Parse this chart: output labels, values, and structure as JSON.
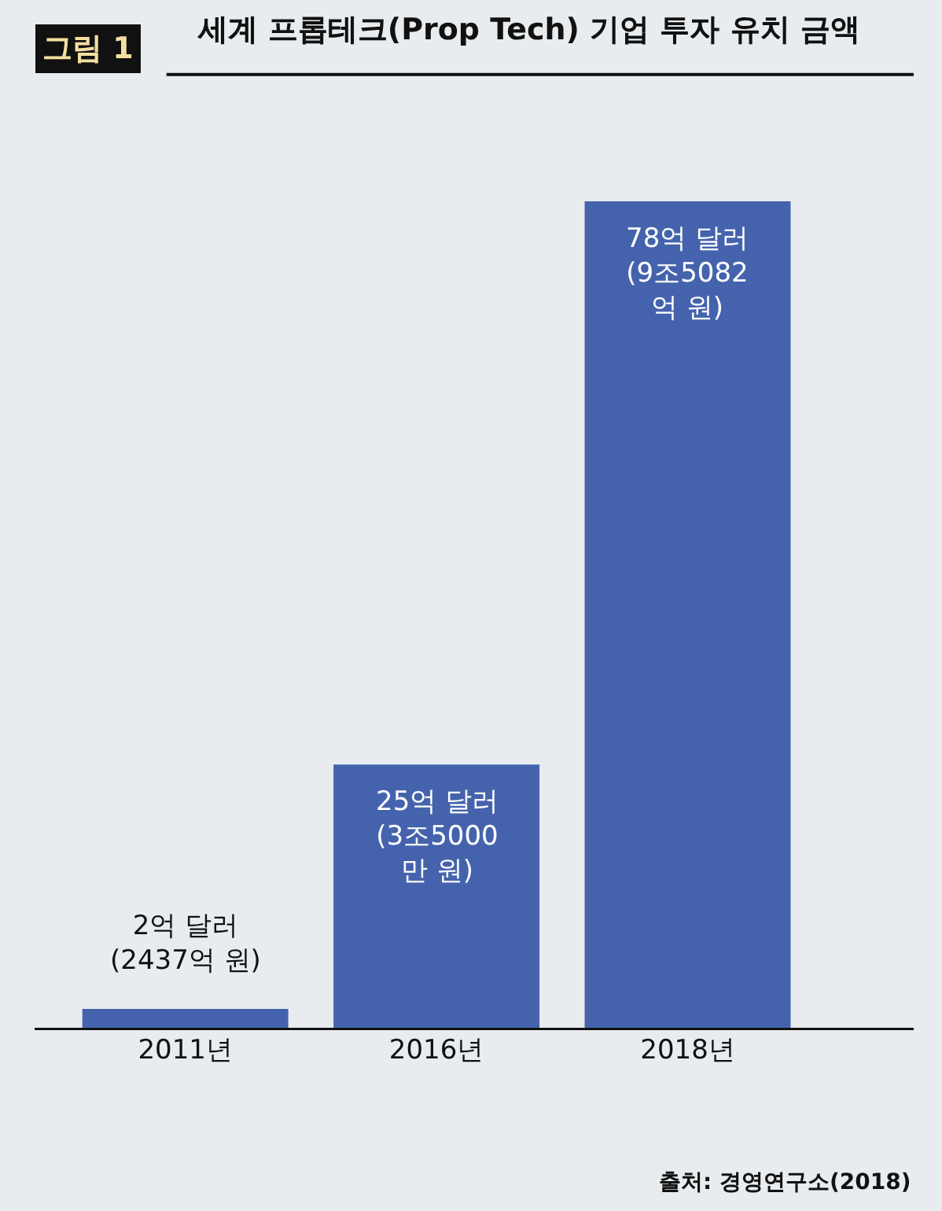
{
  "chart_data": {
    "type": "bar",
    "title": "세계 프롭테크(Prop Tech) 기업 투자 유치 금액",
    "categories": [
      "2011년",
      "2016년",
      "2018년"
    ],
    "values": [
      2,
      25,
      78
    ],
    "color": "#4563ad",
    "value_labels": [
      "2억 달러\n(2437억 원)",
      "25억 달러\n(3조5000\n만 원)",
      "78억 달러\n(9조5082\n억 원)"
    ],
    "annotations": [
      "그림 1",
      "출처: 경영연구소(2018)"
    ],
    "grid": false,
    "legend": false
  }
}
